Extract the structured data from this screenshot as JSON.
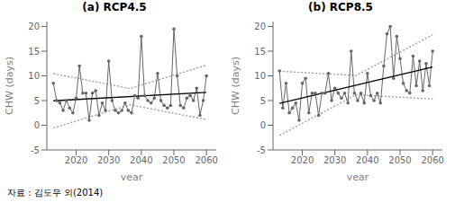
{
  "chart_data": [
    {
      "type": "line",
      "title": "(a) RCP4.5",
      "x_label": "year",
      "y_label": "CHW (days)",
      "xlim": [
        2011,
        2063
      ],
      "ylim": [
        -5,
        21
      ],
      "xticks": [
        2020,
        2030,
        2040,
        2050,
        2060
      ],
      "yticks": [
        -5,
        0,
        5,
        10,
        15,
        20
      ],
      "series": [
        {
          "type": "line",
          "color": "#999999",
          "line_style": "dotted",
          "marker": "none",
          "x": [
            2013,
            2036.5,
            2060
          ],
          "values": [
            10.454506,
            7.452083,
            12.14966
          ]
        },
        {
          "type": "line",
          "color": "#999999",
          "line_style": "dotted",
          "marker": "none",
          "x": [
            2013,
            2036.5,
            2060
          ],
          "values": [
            -0.545494,
            4.152083,
            1.14966
          ]
        },
        {
          "type": "line",
          "color": "#666666",
          "line_style": "solid",
          "marker": "circle",
          "x": [
            2013,
            2014,
            2015,
            2016,
            2017,
            2018,
            2019,
            2020,
            2021,
            2022,
            2023,
            2024,
            2025,
            2026,
            2027,
            2028,
            2029,
            2030,
            2031,
            2032,
            2033,
            2034,
            2035,
            2036,
            2037,
            2038,
            2039,
            2040,
            2041,
            2042,
            2043,
            2044,
            2045,
            2046,
            2047,
            2048,
            2049,
            2050,
            2051,
            2052,
            2053,
            2054,
            2055,
            2056,
            2057,
            2058,
            2059,
            2060
          ],
          "values": [
            8.5,
            5.0,
            4.5,
            3.0,
            5.0,
            3.5,
            2.5,
            5.5,
            12.0,
            6.5,
            6.5,
            1.0,
            6.5,
            7.0,
            2.0,
            4.5,
            3.0,
            13.0,
            5.0,
            3.0,
            2.5,
            3.0,
            4.5,
            3.0,
            2.5,
            6.0,
            5.5,
            18.0,
            6.0,
            5.0,
            4.5,
            5.5,
            10.5,
            5.0,
            4.0,
            3.5,
            4.0,
            19.5,
            10.0,
            4.0,
            3.5,
            5.5,
            6.0,
            5.0,
            7.5,
            2.0,
            5.0,
            10.0
          ]
        },
        {
          "type": "line",
          "color": "#000000",
          "line_style": "solid",
          "marker": "none",
          "x": [
            2013,
            2060
          ],
          "values": [
            4.954506,
            6.64966
          ]
        }
      ],
      "annotations": [
        "자료 : 김도우 외(2014)"
      ]
    },
    {
      "type": "line",
      "title": "(b) RCP8.5",
      "x_label": "year",
      "y_label": "CHW (days)",
      "xlim": [
        2011,
        2063
      ],
      "ylim": [
        -5,
        21
      ],
      "xticks": [
        2020,
        2030,
        2040,
        2050,
        2060
      ],
      "yticks": [
        -5,
        0,
        5,
        10,
        15,
        20
      ],
      "series": [
        {
          "type": "line",
          "color": "#999999",
          "line_style": "dotted",
          "marker": "none",
          "x": [
            2013,
            2036.5,
            2060
          ],
          "values": [
            10.942602,
            10.075,
            18.307398
          ]
        },
        {
          "type": "line",
          "color": "#999999",
          "line_style": "dotted",
          "marker": "none",
          "x": [
            2013,
            2036.5,
            2060
          ],
          "values": [
            -2.057398,
            6.175,
            5.307398
          ]
        },
        {
          "type": "line",
          "color": "#666666",
          "line_style": "solid",
          "marker": "circle",
          "x": [
            2013,
            2014,
            2015,
            2016,
            2017,
            2018,
            2019,
            2020,
            2021,
            2022,
            2023,
            2024,
            2025,
            2026,
            2027,
            2028,
            2029,
            2030,
            2031,
            2032,
            2033,
            2034,
            2035,
            2036,
            2037,
            2038,
            2039,
            2040,
            2041,
            2042,
            2043,
            2044,
            2045,
            2046,
            2047,
            2048,
            2049,
            2050,
            2051,
            2052,
            2053,
            2054,
            2055,
            2056,
            2057,
            2058,
            2059,
            2060
          ],
          "values": [
            11.0,
            3.5,
            8.5,
            2.5,
            3.5,
            4.5,
            1.0,
            8.5,
            9.5,
            2.5,
            6.5,
            6.5,
            2.0,
            6.5,
            6.5,
            10.5,
            5.0,
            7.5,
            6.5,
            5.5,
            6.5,
            4.5,
            15.0,
            6.5,
            5.0,
            6.5,
            4.5,
            10.5,
            6.0,
            5.0,
            6.5,
            4.5,
            12.0,
            18.5,
            20.0,
            9.5,
            18.0,
            13.5,
            8.5,
            7.0,
            6.5,
            14.0,
            8.0,
            13.0,
            7.0,
            12.5,
            8.0,
            15.0
          ]
        },
        {
          "type": "line",
          "color": "#000000",
          "line_style": "solid",
          "marker": "none",
          "x": [
            2013,
            2060
          ],
          "values": [
            4.442602,
            11.807398
          ]
        }
      ]
    }
  ]
}
